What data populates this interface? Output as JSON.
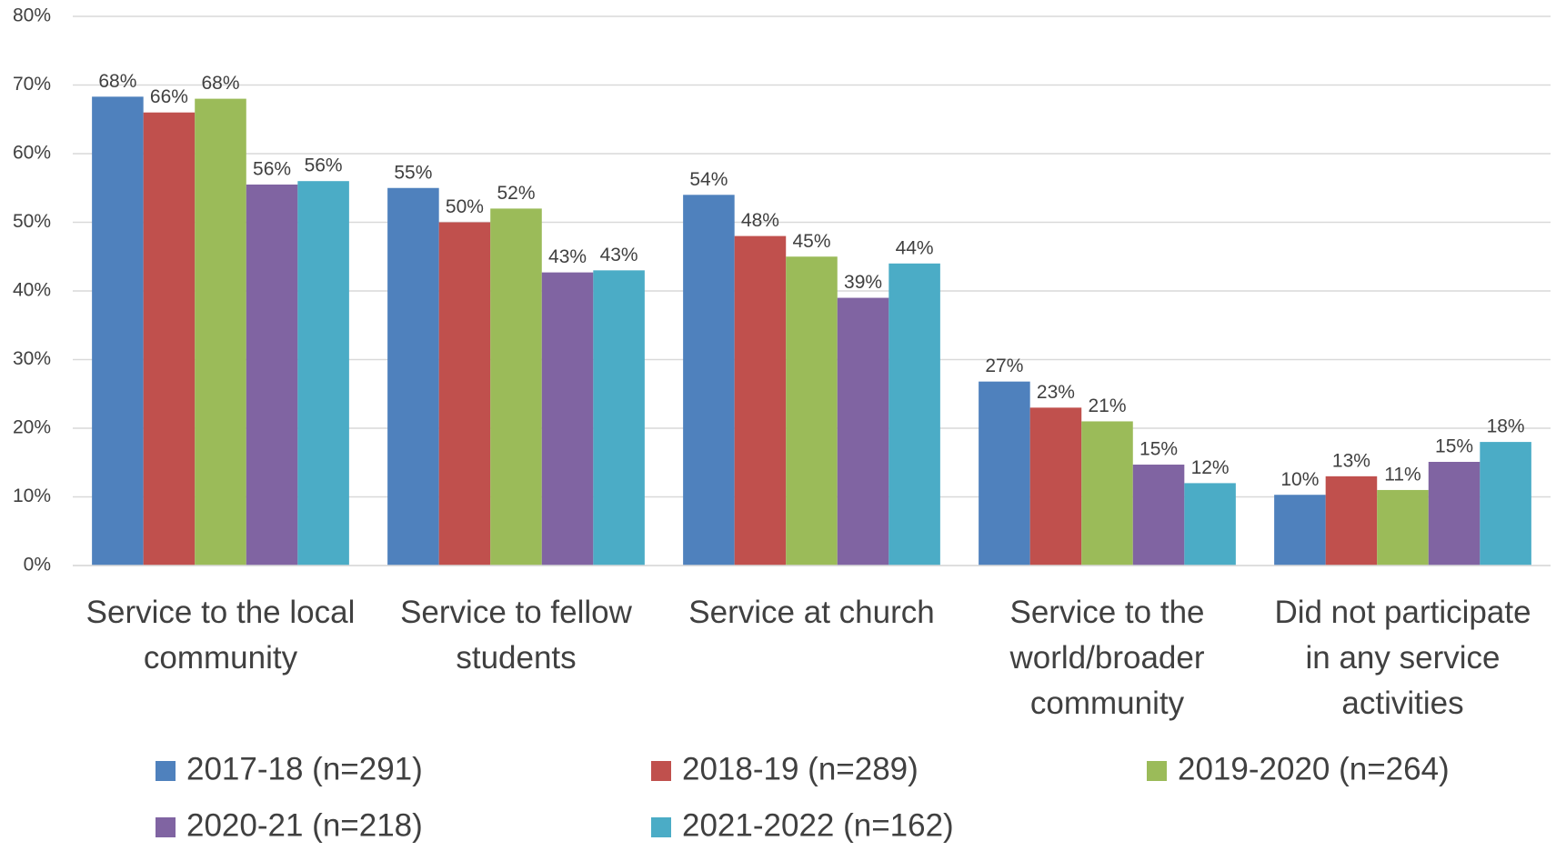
{
  "chart_data": {
    "type": "bar",
    "categories": [
      "Service to the local community",
      "Service to fellow students",
      "Service at church",
      "Service to the world/broader community",
      "Did not participate in any service activities"
    ],
    "series": [
      {
        "name": "2017-18 (n=291)",
        "color": "#4f81bd",
        "values": [
          68.3,
          55,
          54,
          26.8,
          10.3
        ],
        "value_labels": [
          "68%",
          "55%",
          "54%",
          "27%",
          "10%"
        ]
      },
      {
        "name": "2018-19 (n=289)",
        "color": "#c0504d",
        "values": [
          66,
          50,
          48,
          23,
          13
        ],
        "value_labels": [
          "66%",
          "50%",
          "48%",
          "23%",
          "13%"
        ]
      },
      {
        "name": "2019-2020 (n=264)",
        "color": "#9bbb59",
        "values": [
          68,
          52,
          45,
          21,
          11
        ],
        "value_labels": [
          "68%",
          "52%",
          "45%",
          "21%",
          "11%"
        ]
      },
      {
        "name": "2020-21 (n=218)",
        "color": "#8064a2",
        "values": [
          55.5,
          42.7,
          39,
          14.7,
          15.1
        ],
        "value_labels": [
          "56%",
          "43%",
          "39%",
          "15%",
          "15%"
        ]
      },
      {
        "name": "2021-2022 (n=162)",
        "color": "#4bacc6",
        "values": [
          56,
          43,
          44,
          12,
          18
        ],
        "value_labels": [
          "56%",
          "43%",
          "44%",
          "12%",
          "18%"
        ]
      }
    ],
    "ylim": [
      0,
      80
    ],
    "yticks": [
      {
        "value": 0,
        "label": "0%"
      },
      {
        "value": 10,
        "label": "10%"
      },
      {
        "value": 20,
        "label": "20%"
      },
      {
        "value": 30,
        "label": "30%"
      },
      {
        "value": 40,
        "label": "40%"
      },
      {
        "value": 50,
        "label": "50%"
      },
      {
        "value": 60,
        "label": "60%"
      },
      {
        "value": 70,
        "label": "70%"
      },
      {
        "value": 80,
        "label": "80%"
      }
    ],
    "grid": true,
    "legend": "bottom"
  }
}
